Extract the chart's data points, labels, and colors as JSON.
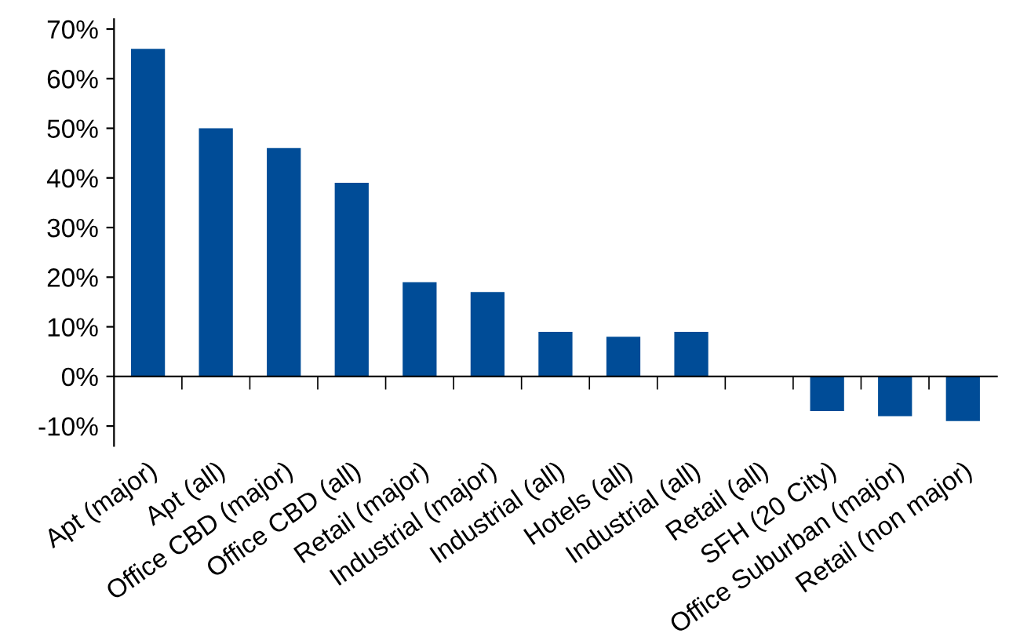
{
  "chart_data": {
    "type": "bar",
    "categories": [
      "Apt (major)",
      "Apt (all)",
      "Office CBD (major)",
      "Office CBD (all)",
      "Retail (major)",
      "Industrial (major)",
      "Industrial (all)",
      "Hotels (all)",
      "Industrial (all)",
      "Retail (all)",
      "SFH (20 City)",
      "Office Suburban (major)",
      "Retail (non major)"
    ],
    "values": [
      66,
      50,
      46,
      39,
      19,
      17,
      9,
      8,
      9,
      0,
      -7,
      -8,
      -9
    ],
    "color": "#004c97",
    "ylim": [
      -14,
      72
    ],
    "yticks": [
      {
        "value": -10,
        "label": "-10%"
      },
      {
        "value": 0,
        "label": "0%"
      },
      {
        "value": 10,
        "label": "10%"
      },
      {
        "value": 20,
        "label": "20%"
      },
      {
        "value": 30,
        "label": "30%"
      },
      {
        "value": 40,
        "label": "40%"
      },
      {
        "value": 50,
        "label": "50%"
      },
      {
        "value": 60,
        "label": "60%"
      },
      {
        "value": 70,
        "label": "70%"
      }
    ],
    "legend": false
  }
}
